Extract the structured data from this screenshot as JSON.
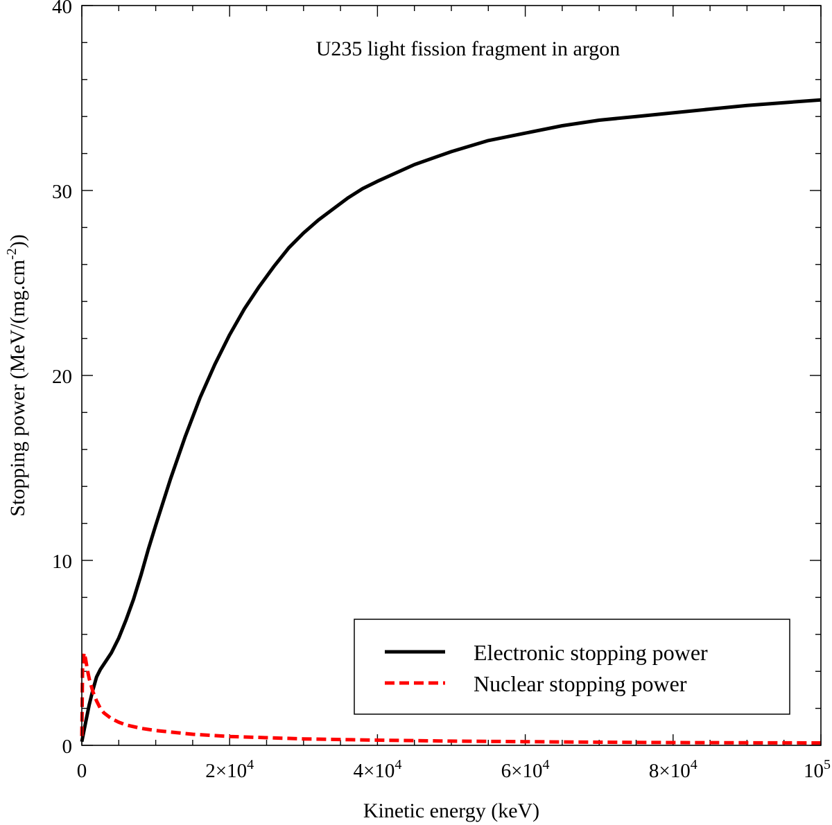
{
  "chart_data": {
    "type": "line",
    "annotation": "U235 light fission fragment in argon",
    "xlabel": "Kinetic energy (keV)",
    "ylabel": "Stopping power (MeV/(mg.cm",
    "ylabel_sup": "-2",
    "ylabel_end": "))",
    "xlim": [
      0,
      100000
    ],
    "ylim": [
      0,
      40
    ],
    "x_ticks": [
      {
        "value": 0,
        "mant": "0",
        "exp": ""
      },
      {
        "value": 20000,
        "mant": "2×10",
        "exp": "4"
      },
      {
        "value": 40000,
        "mant": "4×10",
        "exp": "4"
      },
      {
        "value": 60000,
        "mant": "6×10",
        "exp": "4"
      },
      {
        "value": 80000,
        "mant": "8×10",
        "exp": "4"
      },
      {
        "value": 100000,
        "mant": "10",
        "exp": "5"
      }
    ],
    "y_ticks": [
      {
        "value": 0,
        "label": "0"
      },
      {
        "value": 10,
        "label": "10"
      },
      {
        "value": 20,
        "label": "20"
      },
      {
        "value": 30,
        "label": "30"
      },
      {
        "value": 40,
        "label": "40"
      }
    ],
    "legend_position": "bottom-right",
    "grid": false,
    "series": [
      {
        "name": "Electronic stopping power",
        "color": "#000000",
        "style": "solid",
        "x": [
          0,
          500,
          1000,
          1500,
          2000,
          2500,
          3000,
          4000,
          5000,
          6000,
          7000,
          8000,
          9000,
          10000,
          12000,
          14000,
          16000,
          18000,
          20000,
          22000,
          24000,
          26000,
          28000,
          30000,
          32000,
          34000,
          36000,
          38000,
          40000,
          45000,
          50000,
          55000,
          60000,
          65000,
          70000,
          75000,
          80000,
          85000,
          90000,
          95000,
          100000
        ],
        "y": [
          0.2,
          1.2,
          2.2,
          3.0,
          3.7,
          4.1,
          4.4,
          5.0,
          5.8,
          6.8,
          7.9,
          9.2,
          10.6,
          11.9,
          14.4,
          16.7,
          18.8,
          20.6,
          22.2,
          23.6,
          24.8,
          25.9,
          26.9,
          27.7,
          28.4,
          29.0,
          29.6,
          30.1,
          30.5,
          31.4,
          32.1,
          32.7,
          33.1,
          33.5,
          33.8,
          34.0,
          34.2,
          34.4,
          34.6,
          34.75,
          34.9
        ]
      },
      {
        "name": "Nuclear stopping power",
        "color": "#ff0000",
        "style": "dashed",
        "x": [
          0,
          100,
          300,
          500,
          800,
          1000,
          1500,
          2000,
          2500,
          3000,
          4000,
          5000,
          6000,
          8000,
          10000,
          15000,
          20000,
          30000,
          40000,
          50000,
          60000,
          70000,
          80000,
          90000,
          100000
        ],
        "y": [
          0.5,
          4.2,
          5.0,
          4.7,
          4.0,
          3.6,
          2.9,
          2.4,
          2.0,
          1.75,
          1.45,
          1.25,
          1.1,
          0.92,
          0.8,
          0.6,
          0.48,
          0.35,
          0.28,
          0.23,
          0.2,
          0.17,
          0.15,
          0.14,
          0.13
        ]
      }
    ]
  }
}
